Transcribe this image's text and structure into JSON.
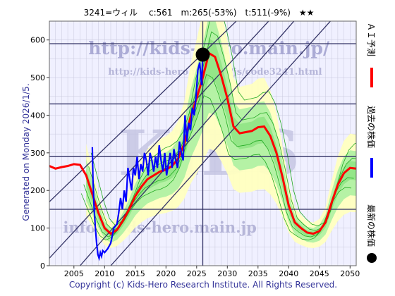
{
  "header": "3241=ウィル　 c:561　m:265(-53%)　t:511(-9%)　★★",
  "side_left": "Generated on Monday 2026/1/5.",
  "footer": "Copyright (c) Kids-Hero Research Institute. All Rights Reserved.",
  "watermarks": {
    "url_top": "http://kids-hero.main.jp/",
    "url_mid": "http://kids-hero.main.jp/js/code3241.html",
    "big": "KIDS",
    "email": "info@kids-hero.main.jp"
  },
  "colors": {
    "plot_bg": "#f0f0ff",
    "actual": "#0000ff",
    "ai": "#ff0000",
    "band_outer": "#ffffc0",
    "band_inner": "#a8f0a0",
    "band_lines": "#22aa22",
    "grid": "#c8c8dc",
    "channel": "#333366",
    "hline": "#333366"
  },
  "chart_data": {
    "type": "line",
    "title": "3241=ウィル　 c:561　m:265(-53%)　t:511(-9%)　★★",
    "xlim": [
      2001,
      2051
    ],
    "ylim": [
      0,
      650
    ],
    "x_ticks": [
      2005,
      2010,
      2015,
      2020,
      2025,
      2030,
      2035,
      2040,
      2045,
      2050
    ],
    "y_ticks": [
      0,
      100,
      200,
      300,
      400,
      500,
      600
    ],
    "hlines": [
      590,
      430,
      290,
      150
    ],
    "vline": 2026,
    "legend": [
      {
        "label": "ＡＩ予測",
        "color": "#ff0000"
      },
      {
        "label": "過去の株価",
        "color": "#0000ff"
      },
      {
        "label": "最新の株価",
        "color": "#000000"
      }
    ],
    "current": {
      "x": 2026,
      "y": 561
    },
    "series": [
      {
        "name": "過去の株価",
        "x": [
          2008.0,
          2008.1,
          2008.3,
          2008.5,
          2008.7,
          2008.9,
          2009.1,
          2009.3,
          2009.5,
          2009.7,
          2010.0,
          2010.5,
          2011.0,
          2011.5,
          2012.0,
          2012.3,
          2012.6,
          2012.9,
          2013.2,
          2013.5,
          2013.8,
          2014.1,
          2014.4,
          2014.7,
          2015.0,
          2015.3,
          2015.6,
          2015.9,
          2016.2,
          2016.5,
          2016.8,
          2017.1,
          2017.4,
          2017.7,
          2018.0,
          2018.3,
          2018.6,
          2018.9,
          2019.2,
          2019.5,
          2019.8,
          2020.1,
          2020.4,
          2020.7,
          2021.0,
          2021.3,
          2021.6,
          2021.9,
          2022.2,
          2022.5,
          2022.8,
          2023.1,
          2023.4,
          2023.7,
          2024.0,
          2024.3,
          2024.6,
          2024.9,
          2025.2,
          2025.5,
          2025.8,
          2026.0
        ],
        "y": [
          315,
          230,
          150,
          100,
          60,
          30,
          20,
          35,
          25,
          40,
          35,
          45,
          60,
          100,
          110,
          140,
          180,
          150,
          200,
          170,
          260,
          230,
          200,
          260,
          240,
          290,
          230,
          270,
          250,
          300,
          280,
          240,
          300,
          280,
          250,
          290,
          260,
          320,
          280,
          250,
          300,
          240,
          270,
          300,
          260,
          310,
          280,
          260,
          330,
          300,
          280,
          400,
          330,
          380,
          360,
          420,
          400,
          450,
          520,
          540,
          480,
          561
        ]
      },
      {
        "name": "ＡＩ予測",
        "x": [
          2001,
          2002,
          2003,
          2004,
          2005,
          2006,
          2007,
          2008,
          2009,
          2010,
          2011,
          2012,
          2013,
          2014,
          2015,
          2016,
          2017,
          2018,
          2019,
          2020,
          2021,
          2022,
          2023,
          2024,
          2025,
          2026,
          2027,
          2028,
          2029,
          2030,
          2031,
          2032,
          2033,
          2034,
          2035,
          2036,
          2037,
          2038,
          2039,
          2040,
          2041,
          2042,
          2043,
          2044,
          2045,
          2046,
          2047,
          2048,
          2049,
          2050,
          2051
        ],
        "y": [
          265,
          258,
          262,
          265,
          270,
          268,
          240,
          190,
          140,
          100,
          85,
          95,
          120,
          150,
          185,
          210,
          230,
          240,
          250,
          255,
          265,
          285,
          325,
          395,
          445,
          500,
          565,
          555,
          505,
          445,
          370,
          352,
          355,
          358,
          368,
          370,
          345,
          300,
          235,
          160,
          115,
          100,
          88,
          85,
          92,
          115,
          168,
          215,
          246,
          260,
          258
        ]
      }
    ],
    "channel_lines": [
      {
        "x": [
          2001,
          2034
        ],
        "y": [
          170,
          690
        ]
      },
      {
        "x": [
          2001,
          2039
        ],
        "y": [
          20,
          690
        ]
      },
      {
        "x": [
          2006,
          2043
        ],
        "y": [
          0,
          690
        ]
      },
      {
        "x": [
          2011,
          2049
        ],
        "y": [
          0,
          690
        ]
      }
    ]
  }
}
